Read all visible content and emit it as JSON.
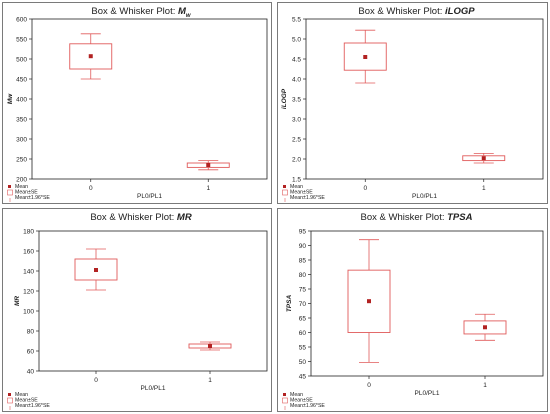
{
  "colors": {
    "box_stroke": "#e05a5a",
    "mean_marker": "#b22222",
    "axis": "#222222",
    "panel_border": "#7a7a7a"
  },
  "chart_data": [
    {
      "type": "box",
      "title": "Box & Whisker Plot:",
      "title_var": "M",
      "title_var_sub": "w",
      "ylabel": "Mw",
      "xlabel": "PL0/PL1",
      "categories": [
        "0",
        "1"
      ],
      "ylim": [
        200,
        600
      ],
      "yticks": [
        200,
        250,
        300,
        350,
        400,
        450,
        500,
        550,
        600
      ],
      "series": [
        {
          "category": "0",
          "mean": 507,
          "box_low": 475,
          "box_high": 538,
          "whisker_low": 450,
          "whisker_high": 563
        },
        {
          "category": "1",
          "mean": 235,
          "box_low": 229,
          "box_high": 240,
          "whisker_low": 223,
          "whisker_high": 246
        }
      ],
      "legend": [
        "Mean",
        "Mean±SE",
        "Mean±1.96*SE"
      ],
      "grid": false
    },
    {
      "type": "box",
      "title": "Box & Whisker Plot:",
      "title_var": "iLOGP",
      "title_var_sub": "",
      "ylabel": "iLOGP",
      "xlabel": "PL0/PL1",
      "categories": [
        "0",
        "1"
      ],
      "ylim": [
        1.5,
        5.5
      ],
      "yticks": [
        1.5,
        2.0,
        2.5,
        3.0,
        3.5,
        4.0,
        4.5,
        5.0,
        5.5
      ],
      "series": [
        {
          "category": "0",
          "mean": 4.55,
          "box_low": 4.22,
          "box_high": 4.9,
          "whisker_low": 3.9,
          "whisker_high": 5.22
        },
        {
          "category": "1",
          "mean": 2.02,
          "box_low": 1.96,
          "box_high": 2.08,
          "whisker_low": 1.9,
          "whisker_high": 2.14
        }
      ],
      "legend": [
        "Mean",
        "Mean±SE",
        "Mean±1.96*SE"
      ],
      "grid": false
    },
    {
      "type": "box",
      "title": "Box & Whisker Plot:",
      "title_var": "MR",
      "title_var_sub": "",
      "ylabel": "MR",
      "xlabel": "PL0/PL1",
      "categories": [
        "0",
        "1"
      ],
      "ylim": [
        40,
        180
      ],
      "yticks": [
        40,
        60,
        80,
        100,
        120,
        140,
        160,
        180
      ],
      "series": [
        {
          "category": "0",
          "mean": 141,
          "box_low": 131,
          "box_high": 152,
          "whisker_low": 121,
          "whisker_high": 162
        },
        {
          "category": "1",
          "mean": 65,
          "box_low": 63,
          "box_high": 67,
          "whisker_low": 61,
          "whisker_high": 69
        }
      ],
      "legend": [
        "Mean",
        "Mean±SE",
        "Mean±1.96*SE"
      ],
      "grid": false
    },
    {
      "type": "box",
      "title": "Box & Whisker Plot:",
      "title_var": "TPSA",
      "title_var_sub": "",
      "ylabel": "TPSA",
      "xlabel": "PL0/PL1",
      "categories": [
        "0",
        "1"
      ],
      "ylim": [
        45,
        95
      ],
      "yticks": [
        45,
        50,
        55,
        60,
        65,
        70,
        75,
        80,
        85,
        90,
        95
      ],
      "series": [
        {
          "category": "0",
          "mean": 70.8,
          "box_low": 60,
          "box_high": 81.5,
          "whisker_low": 49.7,
          "whisker_high": 92
        },
        {
          "category": "1",
          "mean": 61.8,
          "box_low": 59.5,
          "box_high": 64,
          "whisker_low": 57.3,
          "whisker_high": 66.3
        }
      ],
      "legend": [
        "Mean",
        "Mean±SE",
        "Mean±1.96*SE"
      ],
      "grid": false
    }
  ]
}
